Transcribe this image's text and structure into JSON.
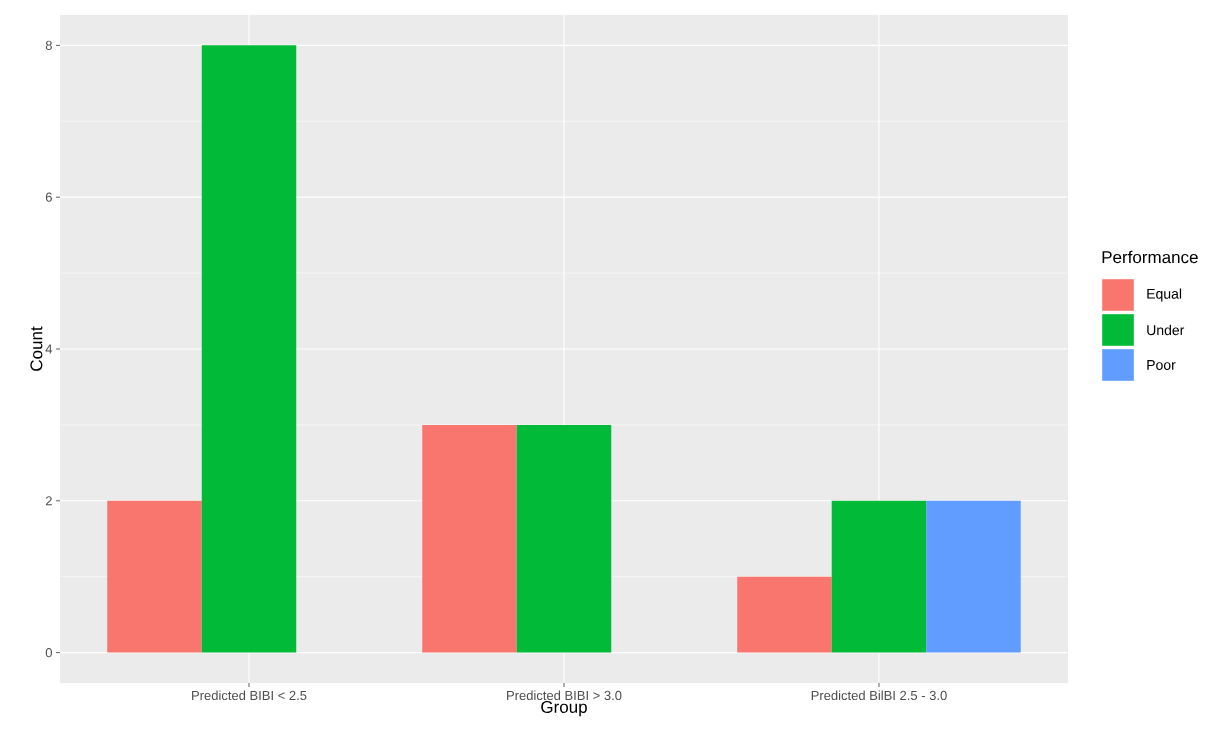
{
  "chart_data": {
    "type": "bar",
    "xlabel": "Group",
    "ylabel": "Count",
    "legend_title": "Performance",
    "categories": [
      "Predicted BIBI < 2.5",
      "Predicted BIBI > 3.0",
      "Predicted BilBI 2.5 - 3.0"
    ],
    "series": [
      {
        "name": "Equal",
        "color": "#f8766d",
        "values": [
          2,
          3,
          1
        ]
      },
      {
        "name": "Under",
        "color": "#00ba38",
        "values": [
          8,
          3,
          2
        ]
      },
      {
        "name": "Poor",
        "color": "#619cff",
        "values": [
          null,
          null,
          2
        ]
      }
    ],
    "ylim": [
      -0.4,
      8.4
    ],
    "yticks": [
      0,
      2,
      4,
      6,
      8
    ],
    "grid": true,
    "legend": "right"
  }
}
